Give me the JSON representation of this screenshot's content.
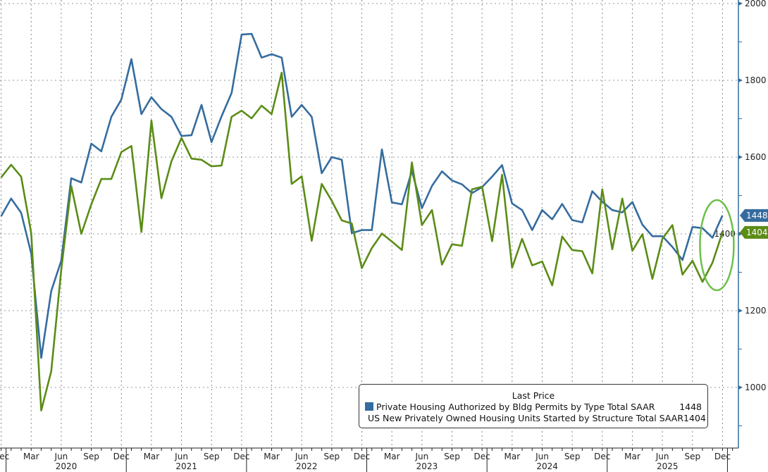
{
  "chart_data": {
    "type": "line",
    "x_start": "2019-12",
    "x_end": "2025-12",
    "x_frequency": "monthly",
    "x_tick_labels": [
      "Mar",
      "Jun",
      "Sep",
      "Dec"
    ],
    "x_year_labels": [
      "2020",
      "2021",
      "2022",
      "2023",
      "2024",
      "2025"
    ],
    "y_axis_side": "right",
    "ylim": [
      840,
      2000
    ],
    "y_ticks": [
      1000,
      1200,
      1400,
      1600,
      1800,
      2000
    ],
    "grid": true,
    "legend": {
      "title": "Last Price",
      "placement": "bottom-right"
    },
    "series": [
      {
        "name": "Private Housing Authorized by Bldg Permits by Type Total SAAR",
        "last_value": "1448",
        "color": "#356c9f",
        "values": [
          1446,
          1492,
          1455,
          1349,
          1077,
          1251,
          1330,
          1545,
          1534,
          1635,
          1615,
          1705,
          1750,
          1855,
          1712,
          1756,
          1725,
          1705,
          1655,
          1657,
          1736,
          1639,
          1706,
          1767,
          1919,
          1921,
          1859,
          1868,
          1859,
          1705,
          1736,
          1705,
          1558,
          1600,
          1593,
          1402,
          1410,
          1410,
          1620,
          1482,
          1477,
          1564,
          1467,
          1525,
          1563,
          1539,
          1529,
          1506,
          1522,
          1549,
          1579,
          1479,
          1462,
          1410,
          1462,
          1438,
          1478,
          1436,
          1430,
          1511,
          1484,
          1462,
          1456,
          1483,
          1424,
          1394,
          1394,
          1366,
          1332,
          1418,
          1415,
          1390,
          1448
        ]
      },
      {
        "name": "US New Privately Owned Housing Units Started by Structure Total SAAR",
        "last_value": "1404",
        "color": "#5b8c16",
        "values": [
          1547,
          1580,
          1549,
          1402,
          940,
          1042,
          1306,
          1525,
          1400,
          1477,
          1543,
          1543,
          1613,
          1629,
          1405,
          1695,
          1493,
          1589,
          1650,
          1596,
          1593,
          1576,
          1578,
          1705,
          1721,
          1701,
          1734,
          1712,
          1820,
          1530,
          1550,
          1382,
          1530,
          1486,
          1435,
          1427,
          1311,
          1363,
          1401,
          1380,
          1358,
          1586,
          1423,
          1462,
          1320,
          1373,
          1369,
          1516,
          1523,
          1381,
          1554,
          1312,
          1387,
          1318,
          1328,
          1266,
          1393,
          1358,
          1355,
          1297,
          1516,
          1360,
          1492,
          1356,
          1399,
          1283,
          1387,
          1423,
          1294,
          1330,
          1275,
          1325,
          1404
        ]
      }
    ],
    "annotation": {
      "shape": "ellipse",
      "color": "#6cc04a",
      "around": "2025-12 latest values"
    }
  }
}
